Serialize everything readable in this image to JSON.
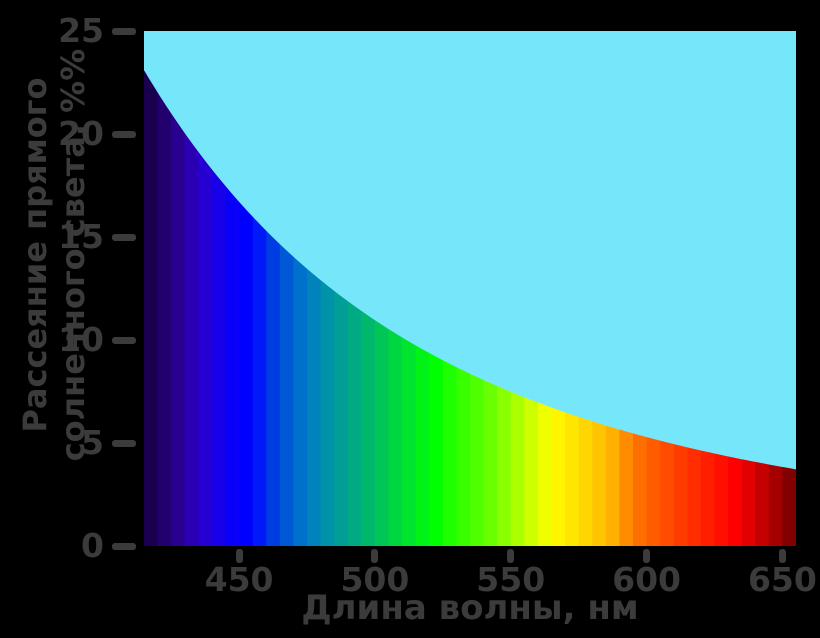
{
  "figure": {
    "background_color": "#000000",
    "text_color": "#3B3B3B",
    "sky_fill_color": "#76E7FB"
  },
  "chart_data": {
    "type": "area",
    "title": "",
    "xlabel": "Длина волны, нм",
    "ylabel": "Рассеяние прямого солнечного света, %%",
    "ylabel_lines": [
      "Рассеяние прямого",
      "солнечного света, %%"
    ],
    "xlim": [
      415,
      655
    ],
    "ylim": [
      0,
      25
    ],
    "x_ticks": [
      450,
      500,
      550,
      600,
      650
    ],
    "y_ticks": [
      0,
      5,
      10,
      15,
      20,
      25
    ],
    "grid": false,
    "legend": null,
    "curve": {
      "description": "Rayleigh scattering of direct sunlight, % — falls as 1/wavelength^4; area below curve filled with visible-light spectrum stripes, area above filled with sky blue",
      "model_params": {
        "reference_nm": 415,
        "reference_value": 23.1,
        "exponent": 4
      },
      "wavelength_nm": [
        415,
        425,
        435,
        445,
        455,
        465,
        475,
        485,
        495,
        505,
        515,
        525,
        535,
        545,
        555,
        565,
        575,
        585,
        595,
        605,
        615,
        625,
        635,
        645,
        655
      ],
      "scattering_percent": [
        23.1,
        21.0,
        19.1,
        17.5,
        16.0,
        14.7,
        13.5,
        12.4,
        11.4,
        10.5,
        9.7,
        9.0,
        8.4,
        7.8,
        7.2,
        6.7,
        6.3,
        5.9,
        5.5,
        5.1,
        4.8,
        4.5,
        4.2,
        4.0,
        3.7
      ]
    },
    "spectrum_fill": {
      "stripe_width_nm": 5,
      "stops_nm_rgb": [
        [
          415,
          25,
          0,
          78
        ],
        [
          420,
          34,
          0,
          110
        ],
        [
          425,
          41,
          0,
          144
        ],
        [
          430,
          43,
          0,
          180
        ],
        [
          435,
          38,
          0,
          210
        ],
        [
          440,
          24,
          0,
          232
        ],
        [
          445,
          8,
          0,
          248
        ],
        [
          450,
          0,
          0,
          255
        ],
        [
          455,
          0,
          25,
          248
        ],
        [
          460,
          0,
          60,
          228
        ],
        [
          465,
          0,
          88,
          215
        ],
        [
          470,
          0,
          112,
          205
        ],
        [
          475,
          0,
          130,
          186
        ],
        [
          480,
          0,
          146,
          168
        ],
        [
          485,
          0,
          158,
          150
        ],
        [
          490,
          0,
          170,
          130
        ],
        [
          495,
          0,
          184,
          108
        ],
        [
          500,
          0,
          198,
          86
        ],
        [
          505,
          0,
          214,
          66
        ],
        [
          510,
          0,
          228,
          46
        ],
        [
          515,
          0,
          242,
          22
        ],
        [
          520,
          0,
          255,
          0
        ],
        [
          525,
          30,
          255,
          0
        ],
        [
          530,
          55,
          255,
          0
        ],
        [
          535,
          80,
          255,
          0
        ],
        [
          540,
          105,
          255,
          0
        ],
        [
          545,
          138,
          255,
          0
        ],
        [
          550,
          170,
          255,
          0
        ],
        [
          555,
          205,
          255,
          0
        ],
        [
          560,
          240,
          255,
          0
        ],
        [
          565,
          255,
          245,
          0
        ],
        [
          570,
          255,
          230,
          0
        ],
        [
          575,
          255,
          214,
          0
        ],
        [
          580,
          255,
          197,
          0
        ],
        [
          585,
          255,
          176,
          0
        ],
        [
          590,
          255,
          140,
          0
        ],
        [
          595,
          255,
          110,
          0
        ],
        [
          600,
          255,
          92,
          0
        ],
        [
          605,
          255,
          76,
          0
        ],
        [
          610,
          255,
          60,
          0
        ],
        [
          615,
          255,
          45,
          0
        ],
        [
          620,
          255,
          30,
          0
        ],
        [
          625,
          255,
          15,
          0
        ],
        [
          630,
          255,
          0,
          0
        ],
        [
          635,
          226,
          0,
          0
        ],
        [
          640,
          196,
          0,
          0
        ],
        [
          645,
          164,
          0,
          0
        ],
        [
          650,
          130,
          0,
          0
        ],
        [
          655,
          84,
          0,
          0
        ]
      ]
    }
  }
}
